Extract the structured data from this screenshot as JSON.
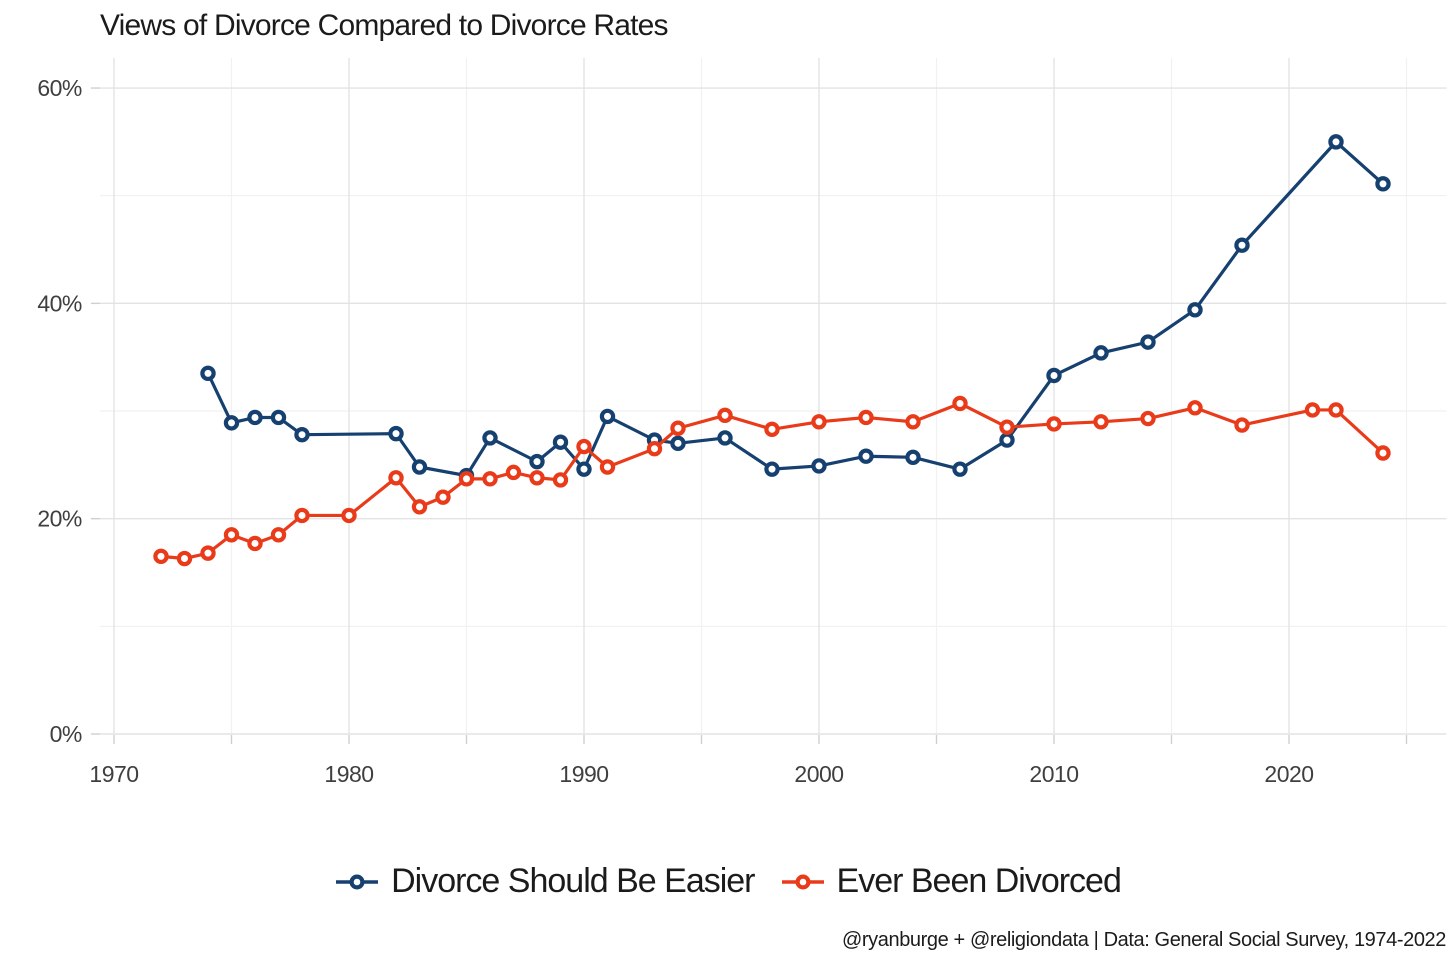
{
  "title": "Views of Divorce Compared to Divorce Rates",
  "attribution": "@ryanburge + @religiondata | Data: General Social Survey, 1974-2022",
  "colors": {
    "series_blue": "#15406F",
    "series_red": "#E93B1A",
    "grid_major": "#E3E3E3",
    "grid_minor": "#F1F1F1",
    "tick": "#CFCFCF",
    "axis_text": "#3F3F3F",
    "text": "#1B1B1B",
    "background": "#FFFFFF"
  },
  "chart_data": {
    "type": "line",
    "title": "Views of Divorce Compared to Divorce Rates",
    "xlabel": "",
    "ylabel": "",
    "xlim": [
      1969.4,
      2026.7
    ],
    "ylim": [
      0,
      62.8
    ],
    "grid": true,
    "legend_position": "bottom",
    "x_ticks": [
      {
        "v": 1970,
        "label": "1970"
      },
      {
        "v": 1980,
        "label": "1980"
      },
      {
        "v": 1990,
        "label": "1990"
      },
      {
        "v": 2000,
        "label": "2000"
      },
      {
        "v": 2010,
        "label": "2010"
      },
      {
        "v": 2020,
        "label": "2020"
      }
    ],
    "x_minor_ticks": [
      1975,
      1985,
      1995,
      2005,
      2015,
      2025
    ],
    "y_ticks": [
      {
        "v": 0,
        "label": "0%"
      },
      {
        "v": 20,
        "label": "20%"
      },
      {
        "v": 40,
        "label": "40%"
      },
      {
        "v": 60,
        "label": "60%"
      }
    ],
    "y_minor_ticks": [
      10,
      30,
      50
    ],
    "series": [
      {
        "name": "Divorce Should Be Easier",
        "color": "series_blue",
        "points": [
          [
            1974,
            33.5
          ],
          [
            1975,
            28.9
          ],
          [
            1976,
            29.4
          ],
          [
            1977,
            29.4
          ],
          [
            1978,
            27.8
          ],
          [
            1982,
            27.9
          ],
          [
            1983,
            24.8
          ],
          [
            1985,
            24.0
          ],
          [
            1986,
            27.5
          ],
          [
            1988,
            25.3
          ],
          [
            1989,
            27.1
          ],
          [
            1990,
            24.6
          ],
          [
            1991,
            29.5
          ],
          [
            1993,
            27.3
          ],
          [
            1994,
            27.0
          ],
          [
            1996,
            27.5
          ],
          [
            1998,
            24.6
          ],
          [
            2000,
            24.9
          ],
          [
            2002,
            25.8
          ],
          [
            2004,
            25.7
          ],
          [
            2006,
            24.6
          ],
          [
            2008,
            27.3
          ],
          [
            2010,
            33.3
          ],
          [
            2012,
            35.4
          ],
          [
            2014,
            36.4
          ],
          [
            2016,
            39.4
          ],
          [
            2018,
            45.4
          ],
          [
            2022,
            55.0
          ],
          [
            2024,
            51.1
          ]
        ]
      },
      {
        "name": "Ever Been Divorced",
        "color": "series_red",
        "points": [
          [
            1972,
            16.5
          ],
          [
            1973,
            16.3
          ],
          [
            1974,
            16.8
          ],
          [
            1975,
            18.5
          ],
          [
            1976,
            17.7
          ],
          [
            1977,
            18.5
          ],
          [
            1978,
            20.3
          ],
          [
            1980,
            20.3
          ],
          [
            1982,
            23.8
          ],
          [
            1983,
            21.1
          ],
          [
            1984,
            22.0
          ],
          [
            1985,
            23.7
          ],
          [
            1986,
            23.7
          ],
          [
            1987,
            24.3
          ],
          [
            1988,
            23.8
          ],
          [
            1989,
            23.6
          ],
          [
            1990,
            26.7
          ],
          [
            1991,
            24.8
          ],
          [
            1993,
            26.5
          ],
          [
            1994,
            28.4
          ],
          [
            1996,
            29.6
          ],
          [
            1998,
            28.3
          ],
          [
            2000,
            29.0
          ],
          [
            2002,
            29.4
          ],
          [
            2004,
            29.0
          ],
          [
            2006,
            30.7
          ],
          [
            2008,
            28.5
          ],
          [
            2010,
            28.8
          ],
          [
            2012,
            29.0
          ],
          [
            2014,
            29.3
          ],
          [
            2016,
            30.3
          ],
          [
            2018,
            28.7
          ],
          [
            2021,
            30.1
          ],
          [
            2022,
            30.1
          ],
          [
            2024,
            26.1
          ]
        ]
      }
    ]
  }
}
